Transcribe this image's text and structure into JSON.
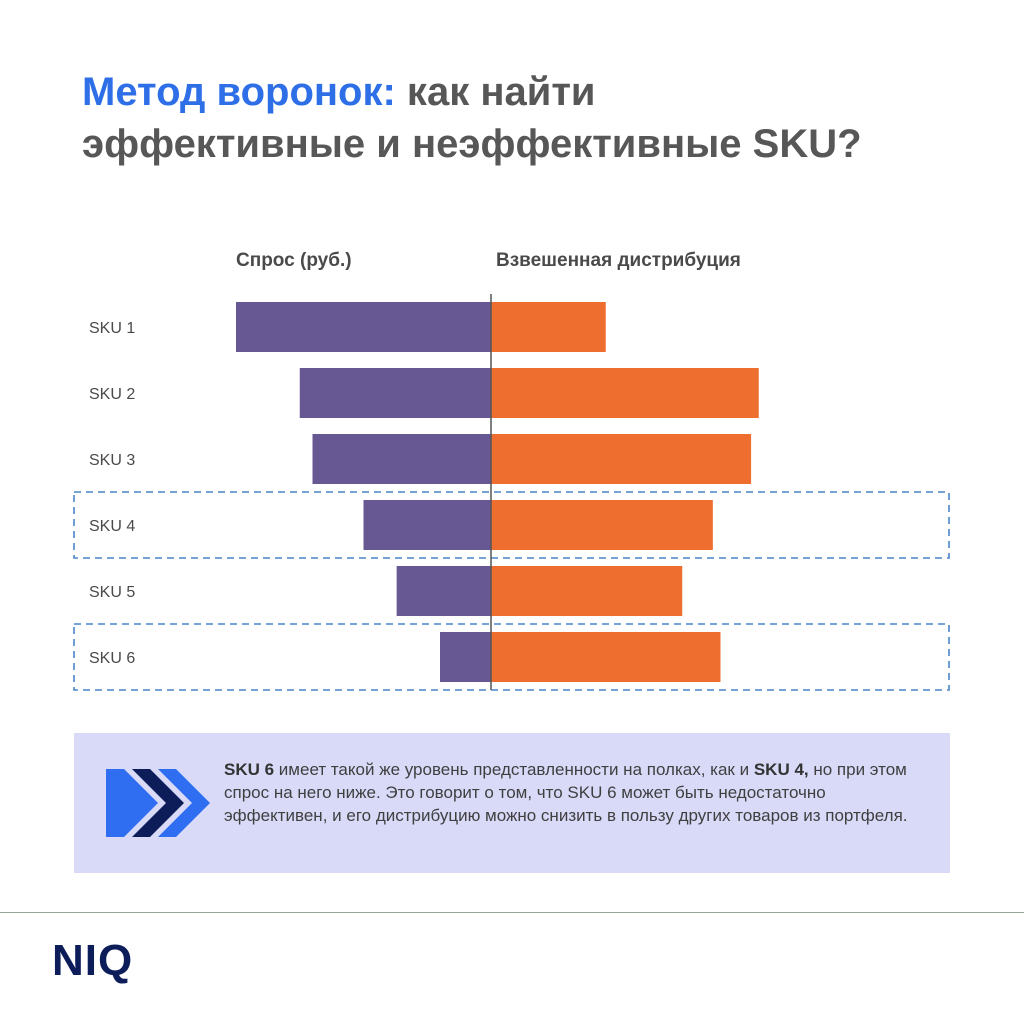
{
  "title": {
    "highlight": "Метод воронок:",
    "line1_rest": " как найти",
    "line2": "эффективные и неэффективные SKU?"
  },
  "columns": {
    "left": "Спрос (руб.)",
    "right": "Взвешенная дистрибуция"
  },
  "chart_data": {
    "type": "bar",
    "orientation": "horizontal-diverging",
    "categories": [
      "SKU 1",
      "SKU 2",
      "SKU 3",
      "SKU 4",
      "SKU 5",
      "SKU 6"
    ],
    "series": [
      {
        "name": "Спрос (руб.)",
        "values": [
          100,
          75,
          70,
          50,
          37,
          20
        ],
        "color": "#675793",
        "side": "left"
      },
      {
        "name": "Взвешенная дистрибуция",
        "values": [
          45,
          105,
          102,
          87,
          75,
          90
        ],
        "color": "#ee6e30",
        "side": "right"
      }
    ],
    "highlighted_categories": [
      "SKU 4",
      "SKU 6"
    ],
    "highlight_color": "#4a86c8",
    "axis_labels_shown": false,
    "grid": false
  },
  "callout": {
    "sku6": "SKU 6",
    "part1": " имеет такой же уровень представленности на полках, как и ",
    "sku4": "SKU 4,",
    "part2": " но при этом спрос на него ниже. Это говорит о том, что SKU 6 может быть недостаточно эффективен, и его дистрибуцию можно снизить в пользу других товаров из портфеля.",
    "icon": "triple-chevron-right-icon",
    "icon_colors": [
      "#2f6ef0",
      "#0d1d59",
      "#2f6ef0"
    ],
    "background": "#d8daf8"
  },
  "logo": "NIQ",
  "colors": {
    "accent": "#2e6fe8",
    "title_text": "#575757",
    "logo": "#0d1d59"
  }
}
